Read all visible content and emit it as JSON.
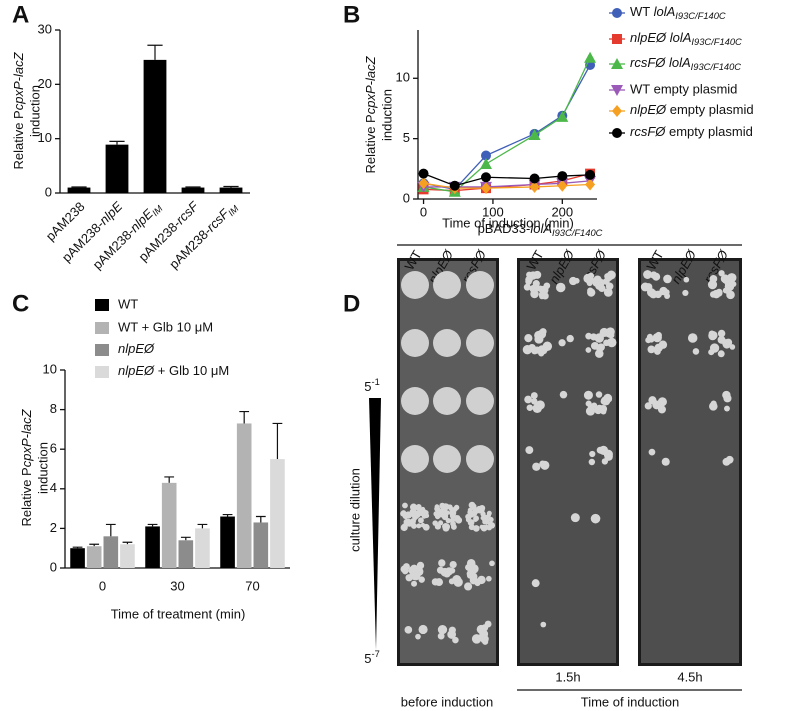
{
  "chart_data": [
    {
      "type": "bar",
      "label": "A",
      "ylabel": [
        [
          {
            "t": "Relative P"
          },
          {
            "t": "cpxP-lacZ",
            "s": "i"
          }
        ],
        "induction"
      ],
      "categories": [
        "pAM238",
        [
          {
            "t": "pAM238-"
          },
          {
            "t": "nlpE",
            "s": "i"
          }
        ],
        [
          {
            "t": "pAM238-"
          },
          {
            "t": "nlpE",
            "s": "i"
          },
          {
            "t": "IM",
            "s": "isub"
          }
        ],
        [
          {
            "t": "pAM238-"
          },
          {
            "t": "rcsF",
            "s": "i"
          }
        ],
        [
          {
            "t": "pAM238-"
          },
          {
            "t": "rcsF",
            "s": "i"
          },
          {
            "t": "IM",
            "s": "isub"
          }
        ]
      ],
      "values": [
        1.0,
        8.9,
        24.5,
        1.0,
        1.0
      ],
      "errors": [
        0.1,
        0.6,
        2.7,
        0.1,
        0.2
      ],
      "color": "#000000",
      "ylim": [
        0,
        30
      ],
      "yticks": [
        0,
        10,
        20,
        30
      ]
    },
    {
      "type": "line",
      "label": "B",
      "ylabel": [
        [
          {
            "t": "Relative P"
          },
          {
            "t": "cpxP-lacZ",
            "s": "i"
          }
        ],
        "induction"
      ],
      "xlabel": "Time of induction (min)",
      "x": [
        0,
        45,
        90,
        160,
        200,
        240
      ],
      "xlim": [
        -8,
        250
      ],
      "xticks": [
        0,
        100,
        200
      ],
      "ylim": [
        0,
        14
      ],
      "yticks": [
        0,
        5,
        10
      ],
      "series": [
        {
          "name": [
            {
              "t": "WT "
            },
            {
              "t": "lolA",
              "s": "i"
            },
            {
              "t": "I93C/F140C",
              "s": "isub"
            }
          ],
          "color": "#3f5fb8",
          "marker": "circle",
          "values": [
            1.3,
            0.8,
            3.6,
            5.4,
            6.9,
            11.1
          ]
        },
        {
          "name": [
            {
              "t": "nlpEØ lolA",
              "s": "i"
            },
            {
              "t": "I93C/F140C",
              "s": "isub"
            }
          ],
          "color": "#e53a2e",
          "marker": "square",
          "values": [
            0.8,
            0.7,
            0.9,
            1.2,
            1.5,
            2.1
          ]
        },
        {
          "name": [
            {
              "t": "rcsFØ lolA",
              "s": "i"
            },
            {
              "t": "I93C/F140C",
              "s": "isub"
            }
          ],
          "color": "#4cb84a",
          "marker": "triangle-up",
          "values": [
            1.0,
            0.6,
            2.9,
            5.3,
            6.8,
            11.7
          ]
        },
        {
          "name": "WT empty plasmid",
          "color": "#9b5ab8",
          "marker": "triangle-down",
          "values": [
            1.0,
            1.0,
            1.0,
            1.2,
            1.3,
            1.5
          ]
        },
        {
          "name": [
            {
              "t": "nlpEØ",
              "s": "i"
            },
            {
              "t": " empty plasmid"
            }
          ],
          "color": "#f5a020",
          "marker": "diamond",
          "values": [
            1.3,
            0.9,
            0.9,
            1.0,
            1.1,
            1.2
          ]
        },
        {
          "name": [
            {
              "t": "rcsFØ",
              "s": "i"
            },
            {
              "t": "  empty plasmid"
            }
          ],
          "color": "#000000",
          "marker": "circle",
          "values": [
            2.1,
            1.1,
            1.8,
            1.7,
            1.9,
            2.0
          ]
        }
      ]
    },
    {
      "type": "bar",
      "label": "C",
      "ylabel": [
        [
          {
            "t": "Relative P"
          },
          {
            "t": "cpxP-lacZ",
            "s": "i"
          }
        ],
        "induction"
      ],
      "xlabel": "Time of treatment (min)",
      "categories": [
        "0",
        "30",
        "70"
      ],
      "ylim": [
        0,
        10
      ],
      "yticks": [
        0,
        2,
        4,
        6,
        8,
        10
      ],
      "series": [
        {
          "name": "WT",
          "color": "#000000",
          "values": [
            1.0,
            2.1,
            2.6
          ],
          "errors": [
            0.05,
            0.1,
            0.1
          ]
        },
        {
          "name": "WT + Glb 10 μM",
          "color": "#b3b3b3",
          "values": [
            1.1,
            4.3,
            7.3
          ],
          "errors": [
            0.1,
            0.3,
            0.6
          ]
        },
        {
          "name": [
            {
              "t": "nlpEØ",
              "s": "i"
            }
          ],
          "color": "#8c8c8c",
          "values": [
            1.6,
            1.4,
            2.3
          ],
          "errors": [
            0.6,
            0.15,
            0.3
          ]
        },
        {
          "name": [
            {
              "t": "nlpEØ",
              "s": "i"
            },
            {
              "t": " + Glb 10 μM"
            }
          ],
          "color": "#dadada",
          "values": [
            1.2,
            2.0,
            5.5
          ],
          "errors": [
            0.1,
            0.2,
            1.8
          ]
        }
      ]
    }
  ],
  "panel_d": {
    "label": "D",
    "title": [
      {
        "t": "pBAD33-"
      },
      {
        "t": "lolA",
        "s": "i"
      },
      {
        "t": "I93C/F140C",
        "s": "isub"
      }
    ],
    "columns": [
      "WT",
      [
        {
          "t": "nlpEØ",
          "s": "i"
        }
      ],
      [
        {
          "t": "rcsFØ",
          "s": "i"
        }
      ]
    ],
    "y_label": "culture dilution",
    "dilution_top": [
      {
        "t": "5"
      },
      {
        "t": "-1",
        "s": "sup"
      }
    ],
    "dilution_bottom": [
      {
        "t": "5"
      },
      {
        "t": "-7",
        "s": "sup"
      }
    ],
    "times": [
      "1.5h",
      "4.5h"
    ],
    "before_label": "before induction",
    "time_label": "Time of induction"
  }
}
